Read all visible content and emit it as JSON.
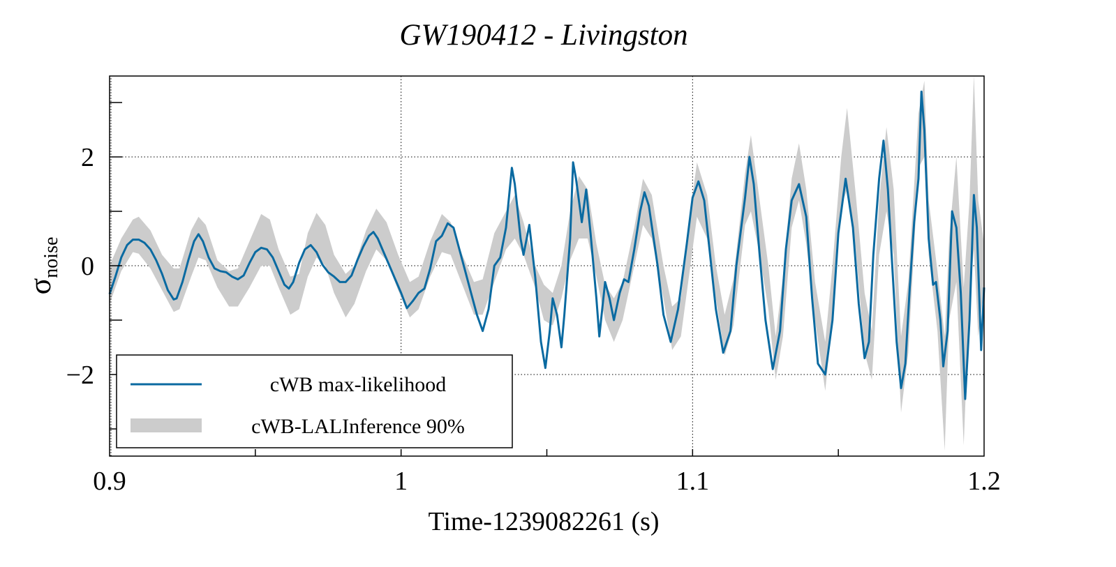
{
  "chart_data": {
    "type": "line",
    "title": "GW190412 - Livingston",
    "xlabel": "Time-1239082261 (s)",
    "ylabel": "σ",
    "ylabel_subscript": "noise",
    "xlim": [
      0.9,
      1.2
    ],
    "ylim": [
      -3.5,
      3.5
    ],
    "xticks": [
      0.9,
      1.0,
      1.1,
      1.2
    ],
    "xtick_labels": [
      "0.9",
      "1",
      "1.1",
      "1.2"
    ],
    "yticks": [
      -2,
      0,
      2
    ],
    "ytick_labels": [
      "−2",
      "0",
      "2"
    ],
    "grid": true,
    "legend_position": "bottom-left",
    "colors": {
      "line": "#0a6aa1",
      "band": "#cccccc"
    },
    "series": [
      {
        "name": "cWB max-likelihood",
        "kind": "line",
        "points": [
          [
            0.9,
            -0.52
          ],
          [
            0.902,
            -0.2
          ],
          [
            0.904,
            0.15
          ],
          [
            0.906,
            0.38
          ],
          [
            0.908,
            0.48
          ],
          [
            0.91,
            0.48
          ],
          [
            0.912,
            0.42
          ],
          [
            0.914,
            0.3
          ],
          [
            0.916,
            0.1
          ],
          [
            0.918,
            -0.15
          ],
          [
            0.92,
            -0.45
          ],
          [
            0.922,
            -0.62
          ],
          [
            0.923,
            -0.6
          ],
          [
            0.925,
            -0.3
          ],
          [
            0.927,
            0.1
          ],
          [
            0.929,
            0.45
          ],
          [
            0.9305,
            0.58
          ],
          [
            0.932,
            0.45
          ],
          [
            0.934,
            0.15
          ],
          [
            0.936,
            -0.05
          ],
          [
            0.938,
            -0.1
          ],
          [
            0.94,
            -0.12
          ],
          [
            0.942,
            -0.2
          ],
          [
            0.944,
            -0.25
          ],
          [
            0.946,
            -0.18
          ],
          [
            0.948,
            0.05
          ],
          [
            0.95,
            0.25
          ],
          [
            0.952,
            0.33
          ],
          [
            0.954,
            0.3
          ],
          [
            0.956,
            0.15
          ],
          [
            0.958,
            -0.1
          ],
          [
            0.96,
            -0.35
          ],
          [
            0.9615,
            -0.42
          ],
          [
            0.963,
            -0.3
          ],
          [
            0.965,
            0.05
          ],
          [
            0.967,
            0.3
          ],
          [
            0.969,
            0.38
          ],
          [
            0.971,
            0.25
          ],
          [
            0.973,
            0.02
          ],
          [
            0.975,
            -0.12
          ],
          [
            0.977,
            -0.2
          ],
          [
            0.979,
            -0.3
          ],
          [
            0.981,
            -0.3
          ],
          [
            0.983,
            -0.18
          ],
          [
            0.985,
            0.1
          ],
          [
            0.987,
            0.35
          ],
          [
            0.989,
            0.55
          ],
          [
            0.9905,
            0.62
          ],
          [
            0.992,
            0.5
          ],
          [
            0.994,
            0.25
          ],
          [
            0.996,
            0.0
          ],
          [
            0.998,
            -0.25
          ],
          [
            1.0,
            -0.5
          ],
          [
            1.002,
            -0.78
          ],
          [
            1.004,
            -0.65
          ],
          [
            1.006,
            -0.5
          ],
          [
            1.008,
            -0.42
          ],
          [
            1.01,
            -0.05
          ],
          [
            1.012,
            0.45
          ],
          [
            1.014,
            0.55
          ],
          [
            1.016,
            0.78
          ],
          [
            1.018,
            0.7
          ],
          [
            1.02,
            0.3
          ],
          [
            1.022,
            -0.1
          ],
          [
            1.024,
            -0.5
          ],
          [
            1.026,
            -0.9
          ],
          [
            1.028,
            -1.2
          ],
          [
            1.03,
            -0.8
          ],
          [
            1.032,
            0.0
          ],
          [
            1.034,
            0.15
          ],
          [
            1.036,
            0.7
          ],
          [
            1.038,
            1.8
          ],
          [
            1.039,
            1.5
          ],
          [
            1.041,
            0.5
          ],
          [
            1.042,
            0.2
          ],
          [
            1.044,
            0.75
          ],
          [
            1.046,
            -0.2
          ],
          [
            1.048,
            -1.4
          ],
          [
            1.0495,
            -1.88
          ],
          [
            1.051,
            -1.2
          ],
          [
            1.052,
            -0.6
          ],
          [
            1.0535,
            -0.9
          ],
          [
            1.055,
            -1.5
          ],
          [
            1.056,
            -0.9
          ],
          [
            1.058,
            0.5
          ],
          [
            1.059,
            1.9
          ],
          [
            1.06,
            1.6
          ],
          [
            1.062,
            0.8
          ],
          [
            1.0635,
            1.4
          ],
          [
            1.065,
            0.6
          ],
          [
            1.067,
            -0.6
          ],
          [
            1.068,
            -1.3
          ],
          [
            1.07,
            -0.3
          ],
          [
            1.0715,
            -0.6
          ],
          [
            1.073,
            -1.0
          ],
          [
            1.075,
            -0.5
          ],
          [
            1.0765,
            -0.25
          ],
          [
            1.078,
            -0.3
          ],
          [
            1.08,
            0.3
          ],
          [
            1.082,
            1.0
          ],
          [
            1.0835,
            1.35
          ],
          [
            1.085,
            1.1
          ],
          [
            1.088,
            0.0
          ],
          [
            1.09,
            -0.9
          ],
          [
            1.0925,
            -1.4
          ],
          [
            1.095,
            -0.8
          ],
          [
            1.098,
            0.4
          ],
          [
            1.1,
            1.25
          ],
          [
            1.102,
            1.55
          ],
          [
            1.104,
            1.2
          ],
          [
            1.106,
            0.2
          ],
          [
            1.108,
            -0.8
          ],
          [
            1.1105,
            -1.6
          ],
          [
            1.113,
            -1.2
          ],
          [
            1.115,
            0.0
          ],
          [
            1.118,
            1.25
          ],
          [
            1.1195,
            2.0
          ],
          [
            1.121,
            1.5
          ],
          [
            1.123,
            0.2
          ],
          [
            1.125,
            -1.0
          ],
          [
            1.1275,
            -1.9
          ],
          [
            1.13,
            -1.2
          ],
          [
            1.132,
            0.3
          ],
          [
            1.134,
            1.2
          ],
          [
            1.1365,
            1.5
          ],
          [
            1.139,
            0.9
          ],
          [
            1.141,
            -0.6
          ],
          [
            1.143,
            -1.8
          ],
          [
            1.1455,
            -2.0
          ],
          [
            1.148,
            -1.0
          ],
          [
            1.15,
            0.6
          ],
          [
            1.1525,
            1.6
          ],
          [
            1.155,
            0.7
          ],
          [
            1.157,
            -0.7
          ],
          [
            1.159,
            -1.7
          ],
          [
            1.1605,
            -1.4
          ],
          [
            1.162,
            0.2
          ],
          [
            1.164,
            1.6
          ],
          [
            1.1655,
            2.3
          ],
          [
            1.167,
            1.4
          ],
          [
            1.1685,
            0.0
          ],
          [
            1.17,
            -1.4
          ],
          [
            1.1715,
            -2.25
          ],
          [
            1.173,
            -1.8
          ],
          [
            1.1745,
            -0.4
          ],
          [
            1.176,
            0.8
          ],
          [
            1.1775,
            1.6
          ],
          [
            1.1785,
            3.2
          ],
          [
            1.1795,
            2.5
          ],
          [
            1.181,
            0.5
          ],
          [
            1.1825,
            -0.35
          ],
          [
            1.1835,
            -0.3
          ],
          [
            1.185,
            -1.0
          ],
          [
            1.186,
            -1.85
          ],
          [
            1.1875,
            -1.2
          ],
          [
            1.189,
            1.0
          ],
          [
            1.1905,
            0.7
          ],
          [
            1.192,
            -0.5
          ],
          [
            1.1935,
            -2.45
          ],
          [
            1.195,
            -1.0
          ],
          [
            1.1965,
            1.3
          ],
          [
            1.1975,
            0.7
          ],
          [
            1.199,
            -1.55
          ],
          [
            1.2,
            -0.4
          ]
        ]
      },
      {
        "name": "cWB-LALInference 90%",
        "kind": "band",
        "points": [
          [
            0.9,
            -0.7,
            0.0
          ],
          [
            0.904,
            -0.1,
            0.5
          ],
          [
            0.908,
            0.25,
            0.85
          ],
          [
            0.91,
            0.22,
            0.9
          ],
          [
            0.914,
            -0.05,
            0.65
          ],
          [
            0.918,
            -0.45,
            0.2
          ],
          [
            0.922,
            -0.85,
            -0.05
          ],
          [
            0.924,
            -0.8,
            -0.05
          ],
          [
            0.928,
            -0.2,
            0.65
          ],
          [
            0.9305,
            0.15,
            0.9
          ],
          [
            0.933,
            0.1,
            0.75
          ],
          [
            0.937,
            -0.4,
            0.1
          ],
          [
            0.941,
            -0.75,
            -0.1
          ],
          [
            0.944,
            -0.75,
            -0.05
          ],
          [
            0.948,
            -0.4,
            0.45
          ],
          [
            0.952,
            0.0,
            0.95
          ],
          [
            0.955,
            0.0,
            0.85
          ],
          [
            0.958,
            -0.4,
            0.3
          ],
          [
            0.962,
            -0.9,
            -0.2
          ],
          [
            0.965,
            -0.8,
            -0.15
          ],
          [
            0.968,
            -0.2,
            0.6
          ],
          [
            0.971,
            0.15,
            0.97
          ],
          [
            0.974,
            0.0,
            0.75
          ],
          [
            0.977,
            -0.5,
            0.2
          ],
          [
            0.981,
            -0.95,
            -0.15
          ],
          [
            0.984,
            -0.7,
            0.0
          ],
          [
            0.988,
            -0.1,
            0.65
          ],
          [
            0.9915,
            0.3,
            1.05
          ],
          [
            0.995,
            0.1,
            0.8
          ],
          [
            0.999,
            -0.45,
            0.2
          ],
          [
            1.003,
            -0.95,
            -0.3
          ],
          [
            1.006,
            -0.8,
            -0.2
          ],
          [
            1.01,
            -0.2,
            0.45
          ],
          [
            1.014,
            0.25,
            0.95
          ],
          [
            1.017,
            0.2,
            0.8
          ],
          [
            1.021,
            -0.35,
            0.2
          ],
          [
            1.025,
            -0.9,
            -0.3
          ],
          [
            1.028,
            -0.9,
            -0.25
          ],
          [
            1.032,
            -0.3,
            0.6
          ],
          [
            1.036,
            0.3,
            1.0
          ],
          [
            1.039,
            0.5,
            1.3
          ],
          [
            1.042,
            0.2,
            0.8
          ],
          [
            1.046,
            -0.4,
            0.0
          ],
          [
            1.049,
            -1.0,
            -0.35
          ],
          [
            1.052,
            -1.1,
            -0.5
          ],
          [
            1.055,
            -0.6,
            0.0
          ],
          [
            1.058,
            0.1,
            1.0
          ],
          [
            1.061,
            0.5,
            1.65
          ],
          [
            1.064,
            0.5,
            1.4
          ],
          [
            1.067,
            -0.2,
            0.4
          ],
          [
            1.07,
            -1.0,
            -0.35
          ],
          [
            1.073,
            -1.4,
            -0.6
          ],
          [
            1.076,
            -1.0,
            -0.3
          ],
          [
            1.08,
            0.0,
            0.7
          ],
          [
            1.083,
            0.75,
            1.6
          ],
          [
            1.086,
            0.5,
            1.3
          ],
          [
            1.09,
            -0.6,
            0.0
          ],
          [
            1.093,
            -1.55,
            -0.75
          ],
          [
            1.096,
            -1.3,
            -0.6
          ],
          [
            1.1,
            0.3,
            1.3
          ],
          [
            1.1015,
            0.9,
            1.9
          ],
          [
            1.105,
            0.5,
            1.3
          ],
          [
            1.108,
            -0.6,
            0.0
          ],
          [
            1.111,
            -1.65,
            -0.9
          ],
          [
            1.114,
            -1.1,
            -0.25
          ],
          [
            1.118,
            0.75,
            1.7
          ],
          [
            1.12,
            1.0,
            2.4
          ],
          [
            1.123,
            0.2,
            1.2
          ],
          [
            1.126,
            -0.8,
            0.0
          ],
          [
            1.1285,
            -2.1,
            -1.3
          ],
          [
            1.131,
            -1.3,
            -0.2
          ],
          [
            1.134,
            0.7,
            1.6
          ],
          [
            1.1365,
            1.2,
            2.25
          ],
          [
            1.139,
            0.4,
            1.4
          ],
          [
            1.142,
            -1.0,
            -0.3
          ],
          [
            1.1455,
            -2.3,
            -1.4
          ],
          [
            1.148,
            -1.0,
            0.0
          ],
          [
            1.151,
            1.1,
            2.0
          ],
          [
            1.153,
            1.4,
            2.9
          ],
          [
            1.156,
            0.3,
            1.3
          ],
          [
            1.159,
            -1.6,
            -0.5
          ],
          [
            1.1615,
            -2.1,
            -1.2
          ],
          [
            1.164,
            0.2,
            1.2
          ],
          [
            1.1665,
            1.0,
            2.55
          ],
          [
            1.169,
            0.2,
            1.4
          ],
          [
            1.1715,
            -2.7,
            -1.3
          ],
          [
            1.174,
            -1.6,
            -0.3
          ],
          [
            1.1775,
            1.8,
            2.8
          ],
          [
            1.1795,
            2.0,
            3.4
          ],
          [
            1.181,
            0.2,
            1.2
          ],
          [
            1.184,
            -1.2,
            -0.1
          ],
          [
            1.1865,
            -3.4,
            -1.3
          ],
          [
            1.188,
            -1.0,
            0.5
          ],
          [
            1.1905,
            -0.3,
            2.0
          ],
          [
            1.193,
            -3.3,
            -0.4
          ],
          [
            1.195,
            -0.6,
            1.2
          ],
          [
            1.1965,
            0.3,
            3.5
          ],
          [
            1.198,
            -1.3,
            1.2
          ],
          [
            1.2,
            -0.4,
            0.4
          ]
        ]
      }
    ],
    "legend": [
      {
        "label": "cWB max-likelihood",
        "kind": "line"
      },
      {
        "label": "cWB-LALInference 90%",
        "kind": "band"
      }
    ]
  }
}
